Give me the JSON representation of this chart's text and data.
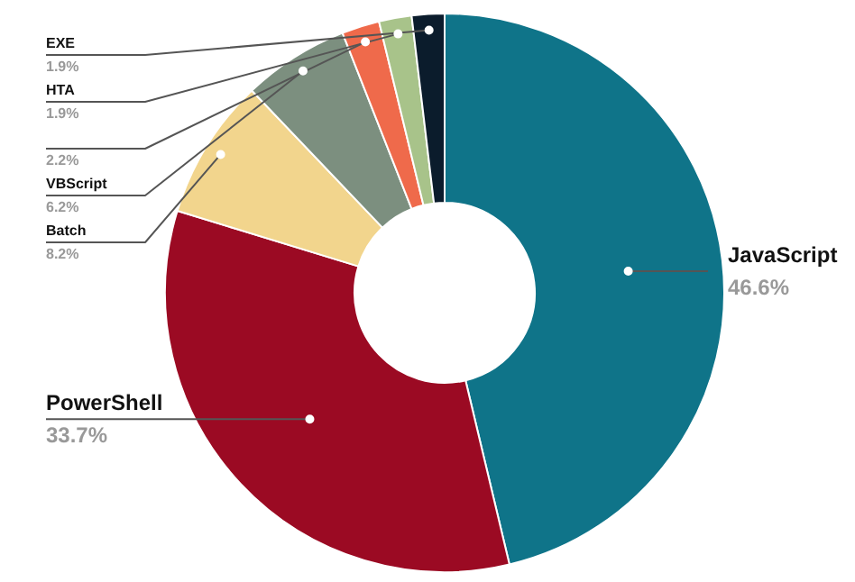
{
  "chart_data": {
    "type": "donut",
    "categories": [
      "JavaScript",
      "PowerShell",
      "Batch",
      "VBScript",
      null,
      "HTA",
      "EXE"
    ],
    "values": [
      46.6,
      33.7,
      8.2,
      6.2,
      2.2,
      1.9,
      1.9
    ],
    "value_labels": [
      "46.6%",
      "33.7%",
      "8.2%",
      "6.2%",
      "2.2%",
      "1.9%",
      "1.9%"
    ],
    "colors": [
      "#0f7489",
      "#9b0a23",
      "#f2d58d",
      "#7c8f7f",
      "#ef6a4b",
      "#a8c38a",
      "#0b1c2c"
    ]
  }
}
